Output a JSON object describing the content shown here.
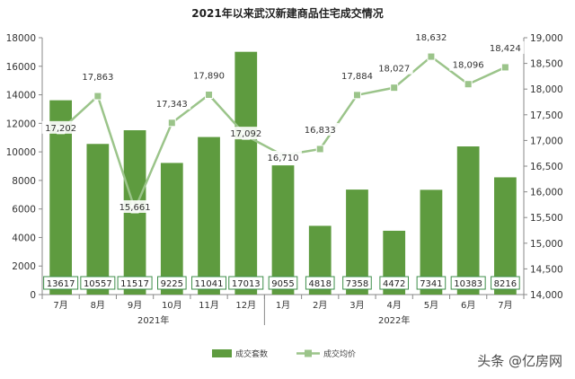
{
  "chart_data": {
    "type": "bar",
    "title": "2021年以来武汉新建商品住宅成交情况",
    "categories": [
      "7月",
      "8月",
      "9月",
      "10月",
      "11月",
      "12月",
      "1月",
      "2月",
      "3月",
      "4月",
      "5月",
      "6月",
      "7月"
    ],
    "year_groups": [
      {
        "label": "2021年",
        "count": 6
      },
      {
        "label": "2022年",
        "count": 7
      }
    ],
    "series": [
      {
        "name": "成交套数",
        "type": "bar",
        "axis": "left",
        "values": [
          13617,
          10557,
          11517,
          9225,
          11041,
          17013,
          9055,
          4818,
          7358,
          4472,
          7341,
          10383,
          8216
        ],
        "labels": [
          "13617",
          "10557",
          "11517",
          "9225",
          "11041",
          "17013",
          "9055",
          "4818",
          "7358",
          "4472",
          "7341",
          "10383",
          "8216"
        ],
        "color": "#5e9b3f"
      },
      {
        "name": "成交均价",
        "type": "line",
        "axis": "right",
        "values": [
          17202,
          17863,
          15661,
          17343,
          17890,
          17092,
          16710,
          16833,
          17884,
          18027,
          18632,
          18096,
          18424
        ],
        "labels": [
          "17,202",
          "17,863",
          "15,661",
          "17,343",
          "17,890",
          "17,092",
          "16,710",
          "16,833",
          "17,884",
          "18,027",
          "18,632",
          "18,096",
          "18,424"
        ],
        "color": "#9bc48a"
      }
    ],
    "y_left": {
      "min": 0,
      "max": 18000,
      "ticks": [
        0,
        2000,
        4000,
        6000,
        8000,
        10000,
        12000,
        14000,
        16000,
        18000
      ],
      "tick_labels": [
        "0",
        "2000",
        "4000",
        "6000",
        "8000",
        "10000",
        "12000",
        "14000",
        "16000",
        "18000"
      ]
    },
    "y_right": {
      "min": 14000,
      "max": 19000,
      "ticks": [
        14000,
        14500,
        15000,
        15500,
        16000,
        16500,
        17000,
        17500,
        18000,
        18500,
        19000
      ],
      "tick_labels": [
        "14,000",
        "14,500",
        "15,000",
        "15,500",
        "16,000",
        "16,500",
        "17,000",
        "17,500",
        "18,000",
        "18,500",
        "19,000"
      ]
    },
    "grid": false,
    "legend_position": "bottom"
  },
  "watermark": "头条 @亿房网"
}
